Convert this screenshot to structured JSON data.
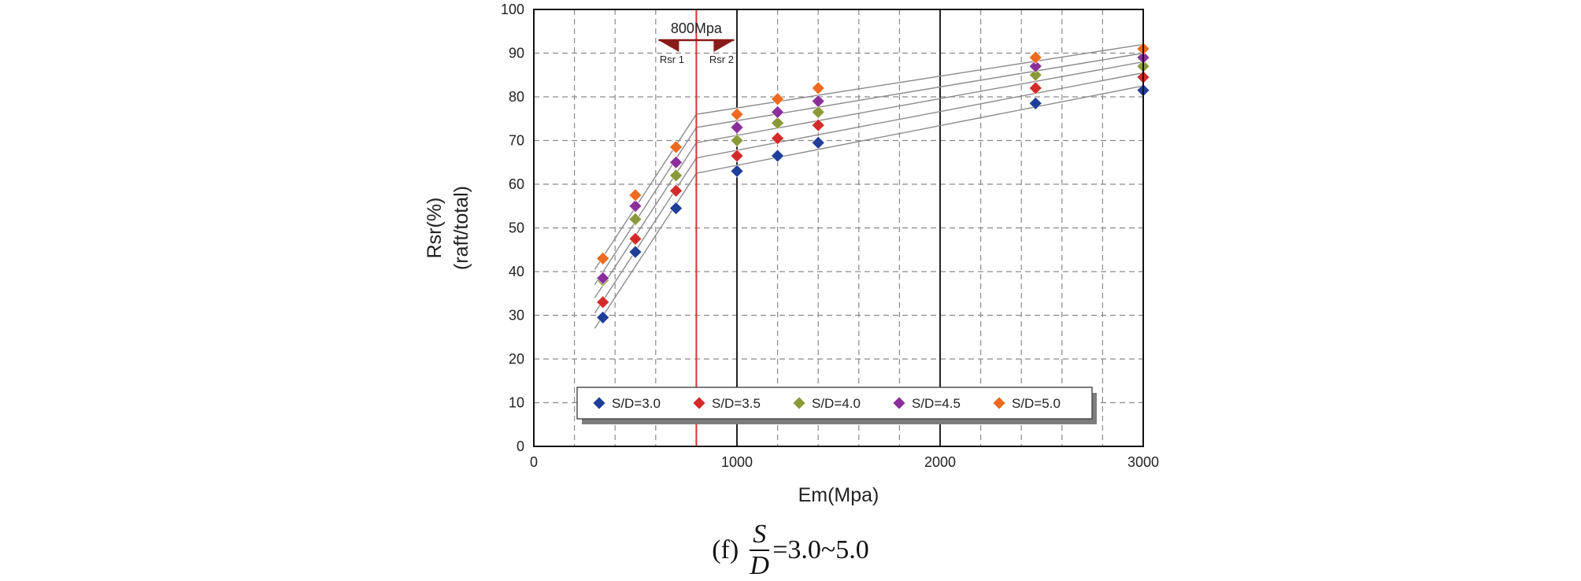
{
  "chart_data": {
    "type": "scatter",
    "xlabel": "Em(Mpa)",
    "ylabel": "Rsr(%)",
    "ylabel2": "(raft/total)",
    "xlim": [
      0,
      3000
    ],
    "ylim": [
      0,
      100
    ],
    "x_ticks": [
      "0",
      "1000",
      "2000",
      "3000"
    ],
    "y_ticks": [
      "0",
      "10",
      "20",
      "30",
      "40",
      "50",
      "60",
      "70",
      "80",
      "90",
      "100"
    ],
    "x_minor_grid_step": 200,
    "grid": true,
    "legend_position": "bottom-center",
    "threshold": {
      "x": 800,
      "label": "800Mpa",
      "left_label": "Rsr 1",
      "right_label": "Rsr 2",
      "color": "#e03030"
    },
    "series": [
      {
        "name": "S/D=3.0",
        "color": "#1f3f99",
        "x": [
          340,
          500,
          700,
          1000,
          1200,
          1400,
          2470,
          3000
        ],
        "y": [
          29.5,
          44.5,
          54.5,
          63.0,
          66.5,
          69.5,
          78.5,
          81.5
        ],
        "fit_left": [
          [
            300,
            27.0
          ],
          [
            800,
            62.5
          ]
        ],
        "fit_right": [
          [
            800,
            62.5
          ],
          [
            3000,
            82.5
          ]
        ]
      },
      {
        "name": "S/D=3.5",
        "color": "#d42a2a",
        "x": [
          340,
          500,
          700,
          1000,
          1200,
          1400,
          2470,
          3000
        ],
        "y": [
          33.0,
          47.5,
          58.5,
          66.5,
          70.5,
          73.5,
          82.0,
          84.5
        ],
        "fit_left": [
          [
            300,
            30.5
          ],
          [
            800,
            66.0
          ]
        ],
        "fit_right": [
          [
            800,
            66.0
          ],
          [
            3000,
            85.5
          ]
        ]
      },
      {
        "name": "S/D=4.0",
        "color": "#8a9a3a",
        "x": [
          340,
          500,
          700,
          1000,
          1200,
          1400,
          2470,
          3000
        ],
        "y": [
          38.0,
          52.0,
          62.0,
          70.0,
          74.0,
          76.5,
          85.0,
          87.0
        ],
        "fit_left": [
          [
            300,
            34.0
          ],
          [
            800,
            69.5
          ]
        ],
        "fit_right": [
          [
            800,
            69.5
          ],
          [
            3000,
            88.0
          ]
        ]
      },
      {
        "name": "S/D=4.5",
        "color": "#8a2f9a",
        "x": [
          340,
          500,
          700,
          1000,
          1200,
          1400,
          2470,
          3000
        ],
        "y": [
          38.5,
          55.0,
          65.0,
          73.0,
          76.5,
          79.0,
          87.0,
          89.0
        ],
        "fit_left": [
          [
            300,
            37.0
          ],
          [
            800,
            73.0
          ]
        ],
        "fit_right": [
          [
            800,
            73.0
          ],
          [
            3000,
            90.0
          ]
        ]
      },
      {
        "name": "S/D=5.0",
        "color": "#ee6a1e",
        "x": [
          340,
          500,
          700,
          1000,
          1200,
          1400,
          2470,
          3000
        ],
        "y": [
          43.0,
          57.5,
          68.5,
          76.0,
          79.5,
          82.0,
          89.0,
          91.0
        ],
        "fit_left": [
          [
            300,
            40.5
          ],
          [
            800,
            76.0
          ]
        ],
        "fit_right": [
          [
            800,
            76.0
          ],
          [
            3000,
            92.0
          ]
        ]
      }
    ]
  },
  "caption": {
    "label": "(f)",
    "numerator": "S",
    "denominator": "D",
    "suffix": "=3.0~5.0"
  }
}
